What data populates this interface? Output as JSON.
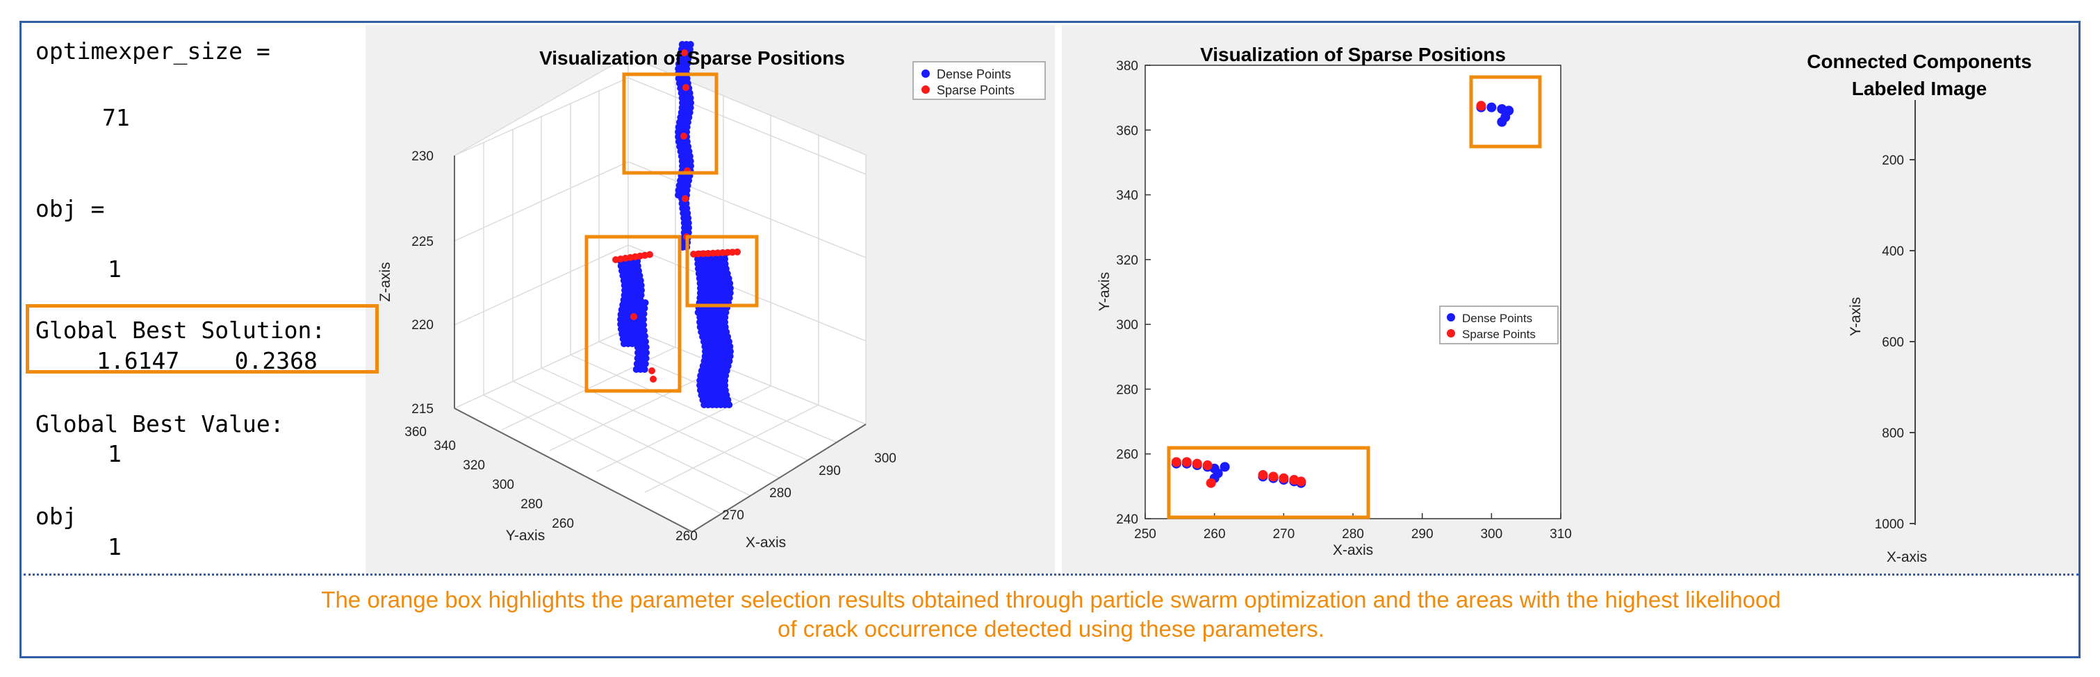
{
  "console": {
    "lines": [
      "optimexper_size =",
      "71",
      "obj =",
      "1",
      "Global Best Solution:",
      "1.6147    0.2368",
      "Global Best Value:",
      "1",
      "obj",
      "1"
    ]
  },
  "chart_data": [
    {
      "type": "scatter3d",
      "title": "Visualization of Sparse Positions",
      "xlabel": "X-axis",
      "ylabel": "Y-axis",
      "zlabel": "Z-axis",
      "xticks": [
        260,
        270,
        280,
        290,
        300
      ],
      "yticks": [
        260,
        280,
        300,
        320,
        340,
        360
      ],
      "zticks": [
        215,
        220,
        225,
        230
      ],
      "legend": [
        "Dense Points",
        "Sparse Points"
      ]
    },
    {
      "type": "scatter",
      "title": "Visualization of Sparse Positions",
      "xlabel": "X-axis",
      "ylabel": "Y-axis",
      "xlim": [
        250,
        310
      ],
      "ylim": [
        240,
        380
      ],
      "xticks": [
        250,
        260,
        270,
        280,
        290,
        300,
        310
      ],
      "yticks": [
        240,
        260,
        280,
        300,
        320,
        340,
        360,
        380
      ],
      "legend": [
        "Dense Points",
        "Sparse Points"
      ],
      "series": [
        {
          "name": "Dense Points",
          "color": "#1a1aff",
          "points": [
            [
              254.5,
              257
            ],
            [
              256,
              257
            ],
            [
              257.5,
              256.5
            ],
            [
              259,
              256
            ],
            [
              260,
              255.5
            ],
            [
              260.5,
              254
            ],
            [
              260,
              252.5
            ],
            [
              261.5,
              256
            ],
            [
              267,
              253
            ],
            [
              268.5,
              252.5
            ],
            [
              270,
              252
            ],
            [
              271.5,
              251.5
            ],
            [
              272.5,
              251
            ],
            [
              298.5,
              367
            ],
            [
              300,
              367
            ],
            [
              301.5,
              366.5
            ],
            [
              302.5,
              366
            ],
            [
              302,
              364
            ],
            [
              301.5,
              362.5
            ]
          ]
        },
        {
          "name": "Sparse Points",
          "color": "#ff1a1a",
          "points": [
            [
              254.5,
              257.5
            ],
            [
              256,
              257.5
            ],
            [
              257.5,
              257
            ],
            [
              259,
              256.5
            ],
            [
              259.5,
              251
            ],
            [
              267,
              253.5
            ],
            [
              268.5,
              253
            ],
            [
              270,
              252.5
            ],
            [
              271.5,
              252
            ],
            [
              272.5,
              251.5
            ],
            [
              298.5,
              367.5
            ]
          ]
        }
      ]
    },
    {
      "type": "image",
      "title": "Connected Components",
      "subtitle": "Labeled Image",
      "xlabel": "X-axis",
      "ylabel": "Y-axis",
      "yticks": [
        200,
        400,
        600,
        800,
        1000
      ]
    }
  ],
  "caption": {
    "line1": "The orange box highlights the parameter selection results obtained through particle swarm optimization and the areas with the highest likelihood",
    "line2": "of crack occurrence detected using these parameters."
  },
  "colors": {
    "dense": "#1a1aff",
    "sparse": "#ff1a1a",
    "highlight": "#f08a0c",
    "frame": "#2f5fa7"
  }
}
